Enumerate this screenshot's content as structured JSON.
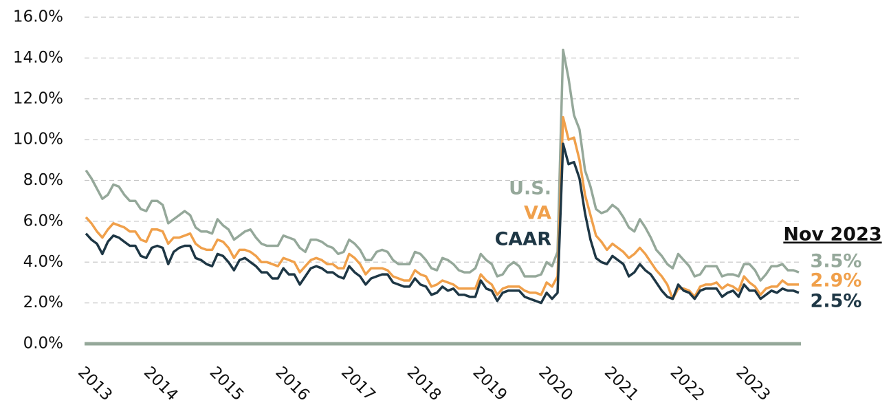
{
  "chart_data": {
    "type": "line",
    "categories": [
      "2013",
      null,
      null,
      null,
      null,
      null,
      null,
      null,
      null,
      null,
      null,
      null,
      "2014",
      null,
      null,
      null,
      null,
      null,
      null,
      null,
      null,
      null,
      null,
      null,
      "2015",
      null,
      null,
      null,
      null,
      null,
      null,
      null,
      null,
      null,
      null,
      null,
      "2016",
      null,
      null,
      null,
      null,
      null,
      null,
      null,
      null,
      null,
      null,
      null,
      "2017",
      null,
      null,
      null,
      null,
      null,
      null,
      null,
      null,
      null,
      null,
      null,
      "2018",
      null,
      null,
      null,
      null,
      null,
      null,
      null,
      null,
      null,
      null,
      null,
      "2019",
      null,
      null,
      null,
      null,
      null,
      null,
      null,
      null,
      null,
      null,
      null,
      "2020",
      null,
      null,
      null,
      null,
      null,
      null,
      null,
      null,
      null,
      null,
      null,
      "2021",
      null,
      null,
      null,
      null,
      null,
      null,
      null,
      null,
      null,
      null,
      null,
      "2022",
      null,
      null,
      null,
      null,
      null,
      null,
      null,
      null,
      null,
      null,
      null,
      "2023",
      null,
      null,
      null,
      null,
      null,
      null,
      null,
      null,
      null,
      null
    ],
    "series": [
      {
        "name": "U.S.",
        "color": "#95a89a",
        "end_label": "3.5%",
        "values": [
          8.5,
          8.1,
          7.6,
          7.1,
          7.3,
          7.8,
          7.7,
          7.3,
          7.0,
          7.0,
          6.6,
          6.5,
          7.0,
          7.0,
          6.8,
          5.9,
          6.1,
          6.3,
          6.5,
          6.3,
          5.7,
          5.5,
          5.5,
          5.4,
          6.1,
          5.8,
          5.6,
          5.1,
          5.3,
          5.5,
          5.6,
          5.2,
          4.9,
          4.8,
          4.8,
          4.8,
          5.3,
          5.2,
          5.1,
          4.7,
          4.5,
          5.1,
          5.1,
          5.0,
          4.8,
          4.7,
          4.4,
          4.5,
          5.1,
          4.9,
          4.6,
          4.1,
          4.1,
          4.5,
          4.6,
          4.5,
          4.1,
          3.9,
          3.9,
          3.9,
          4.5,
          4.4,
          4.1,
          3.7,
          3.6,
          4.2,
          4.1,
          3.9,
          3.6,
          3.5,
          3.5,
          3.7,
          4.4,
          4.1,
          3.9,
          3.3,
          3.4,
          3.8,
          4.0,
          3.8,
          3.3,
          3.3,
          3.3,
          3.4,
          4.0,
          3.8,
          4.5,
          14.4,
          13.0,
          11.2,
          10.5,
          8.5,
          7.7,
          6.6,
          6.4,
          6.5,
          6.8,
          6.6,
          6.2,
          5.7,
          5.5,
          6.1,
          5.7,
          5.2,
          4.6,
          4.3,
          3.9,
          3.7,
          4.4,
          4.1,
          3.8,
          3.3,
          3.4,
          3.8,
          3.8,
          3.8,
          3.3,
          3.4,
          3.4,
          3.3,
          3.9,
          3.9,
          3.6,
          3.1,
          3.4,
          3.8,
          3.8,
          3.9,
          3.6,
          3.6,
          3.5
        ]
      },
      {
        "name": "VA",
        "color": "#f0a04b",
        "end_label": "2.9%",
        "values": [
          6.2,
          5.9,
          5.5,
          5.2,
          5.6,
          5.9,
          5.8,
          5.7,
          5.5,
          5.5,
          5.1,
          5.0,
          5.6,
          5.6,
          5.5,
          4.9,
          5.2,
          5.2,
          5.3,
          5.4,
          4.9,
          4.7,
          4.6,
          4.6,
          5.1,
          5.0,
          4.7,
          4.2,
          4.6,
          4.6,
          4.5,
          4.3,
          4.0,
          4.0,
          3.9,
          3.8,
          4.2,
          4.1,
          4.0,
          3.5,
          3.8,
          4.1,
          4.2,
          4.1,
          3.9,
          3.9,
          3.7,
          3.7,
          4.4,
          4.2,
          3.9,
          3.4,
          3.7,
          3.7,
          3.7,
          3.6,
          3.3,
          3.2,
          3.1,
          3.1,
          3.6,
          3.4,
          3.3,
          2.8,
          2.9,
          3.1,
          3.0,
          2.9,
          2.7,
          2.7,
          2.7,
          2.7,
          3.4,
          3.1,
          2.9,
          2.4,
          2.7,
          2.8,
          2.8,
          2.8,
          2.6,
          2.5,
          2.5,
          2.4,
          3.0,
          2.8,
          3.3,
          11.1,
          10.0,
          10.1,
          9.0,
          7.3,
          6.3,
          5.3,
          5.0,
          4.6,
          4.9,
          4.7,
          4.5,
          4.2,
          4.4,
          4.7,
          4.4,
          4.0,
          3.6,
          3.3,
          2.9,
          2.2,
          2.7,
          2.7,
          2.6,
          2.3,
          2.8,
          2.9,
          2.9,
          3.0,
          2.7,
          2.9,
          2.8,
          2.6,
          3.3,
          3.0,
          2.8,
          2.4,
          2.7,
          2.8,
          2.8,
          3.1,
          2.9,
          2.9,
          2.9
        ]
      },
      {
        "name": "CAAR",
        "color": "#1e3745",
        "end_label": "2.5%",
        "values": [
          5.4,
          5.1,
          4.9,
          4.4,
          5.0,
          5.3,
          5.2,
          5.0,
          4.8,
          4.8,
          4.3,
          4.2,
          4.7,
          4.8,
          4.7,
          3.9,
          4.5,
          4.7,
          4.8,
          4.8,
          4.2,
          4.1,
          3.9,
          3.8,
          4.4,
          4.3,
          4.0,
          3.6,
          4.1,
          4.2,
          4.0,
          3.8,
          3.5,
          3.5,
          3.2,
          3.2,
          3.7,
          3.4,
          3.4,
          2.9,
          3.3,
          3.7,
          3.8,
          3.7,
          3.5,
          3.5,
          3.3,
          3.2,
          3.8,
          3.5,
          3.3,
          2.9,
          3.2,
          3.3,
          3.4,
          3.4,
          3.0,
          2.9,
          2.8,
          2.8,
          3.2,
          2.9,
          2.8,
          2.4,
          2.5,
          2.8,
          2.6,
          2.7,
          2.4,
          2.4,
          2.3,
          2.3,
          3.1,
          2.7,
          2.6,
          2.1,
          2.5,
          2.6,
          2.6,
          2.6,
          2.3,
          2.2,
          2.1,
          2.0,
          2.5,
          2.2,
          2.5,
          9.8,
          8.8,
          8.9,
          8.1,
          6.4,
          5.1,
          4.2,
          4.0,
          3.9,
          4.3,
          4.1,
          3.9,
          3.3,
          3.5,
          3.9,
          3.6,
          3.4,
          3.0,
          2.6,
          2.3,
          2.2,
          2.9,
          2.6,
          2.5,
          2.2,
          2.6,
          2.7,
          2.7,
          2.7,
          2.3,
          2.5,
          2.6,
          2.3,
          2.9,
          2.6,
          2.6,
          2.2,
          2.4,
          2.6,
          2.5,
          2.7,
          2.6,
          2.6,
          2.5
        ]
      }
    ],
    "end_label_title": "Nov 2023",
    "ylim": [
      0,
      16
    ],
    "yticks": [
      {
        "value": 0,
        "label": "0.0%"
      },
      {
        "value": 2,
        "label": "2.0%"
      },
      {
        "value": 4,
        "label": "4.0%"
      },
      {
        "value": 6,
        "label": "6.0%"
      },
      {
        "value": 8,
        "label": "8.0%"
      },
      {
        "value": 10,
        "label": "10.0%"
      },
      {
        "value": 12,
        "label": "12.0%"
      },
      {
        "value": 14,
        "label": "14.0%"
      },
      {
        "value": 16,
        "label": "16.0%"
      }
    ],
    "grid": true
  }
}
